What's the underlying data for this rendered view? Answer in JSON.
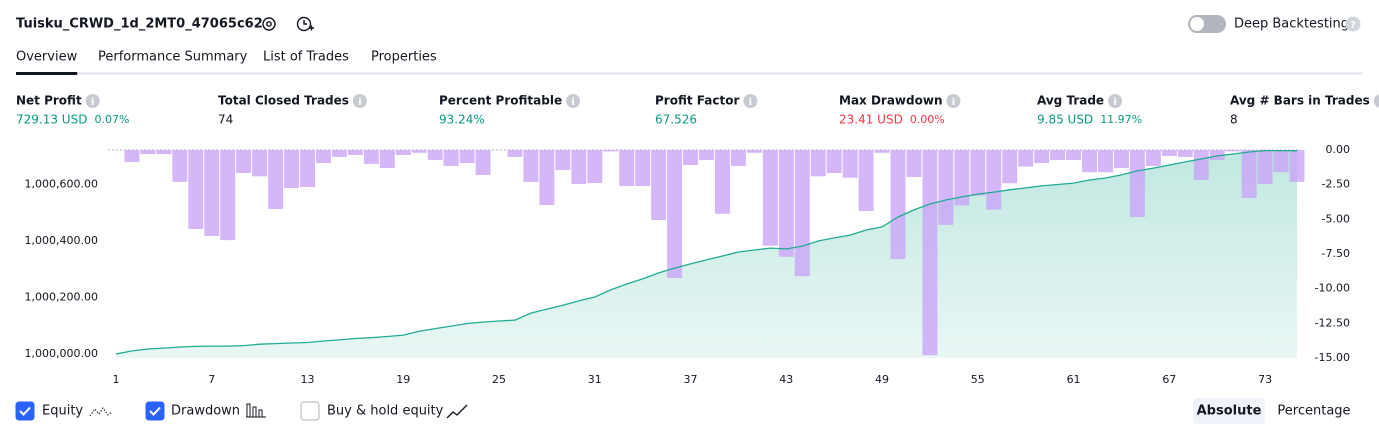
{
  "header": {
    "title": "Tuisku_CRWD_1d_2MT0_47065c62",
    "toggle_label": "Deep Backtesting"
  },
  "tabs": [
    "Overview",
    "Performance Summary",
    "List of Trades",
    "Properties"
  ],
  "metrics": [
    {
      "label": "Net Profit",
      "value": "729.13 USD",
      "change": "0.07%",
      "color": "#089981"
    },
    {
      "label": "Total Closed Trades",
      "value": "74",
      "color": "#131722"
    },
    {
      "label": "Percent Profitable",
      "value": "93.24%",
      "color": "#089981"
    },
    {
      "label": "Profit Factor",
      "value": "67.526",
      "color": "#089981"
    },
    {
      "label": "Max Drawdown",
      "value": "23.41 USD",
      "change": "0.00%",
      "color": "#f23645"
    },
    {
      "label": "Avg Trade",
      "value": "9.85 USD",
      "change": "11.97%",
      "color": "#089981"
    },
    {
      "label": "Avg # Bars in Trades",
      "value": "8",
      "color": "#131722"
    }
  ],
  "chart_data": {
    "type": "bar-line",
    "x": [
      1,
      2,
      3,
      4,
      5,
      6,
      7,
      8,
      9,
      10,
      11,
      12,
      13,
      14,
      15,
      16,
      17,
      18,
      19,
      20,
      21,
      22,
      23,
      24,
      25,
      26,
      27,
      28,
      29,
      30,
      31,
      32,
      33,
      34,
      35,
      36,
      37,
      38,
      39,
      40,
      41,
      42,
      43,
      44,
      45,
      46,
      47,
      48,
      49,
      50,
      51,
      52,
      53,
      54,
      55,
      56,
      57,
      58,
      59,
      60,
      61,
      62,
      63,
      64,
      65,
      66,
      67,
      68,
      69,
      70,
      71,
      72,
      73,
      74,
      75
    ],
    "xlim": [
      1,
      75
    ],
    "xticks": [
      1,
      7,
      13,
      19,
      25,
      31,
      37,
      43,
      49,
      55,
      61,
      67,
      73
    ],
    "ylim": [
      999986,
      1000722
    ],
    "yticks": [
      {
        "value": 1000000,
        "label": "1,000,000.00"
      },
      {
        "value": 1000200,
        "label": "1,000,200.00"
      },
      {
        "value": 1000400,
        "label": "1,000,400.00"
      },
      {
        "value": 1000600,
        "label": "1,000,600.00"
      }
    ],
    "y2lim": [
      -15,
      0
    ],
    "y2ticks": [
      {
        "value": 0,
        "label": "0.00"
      },
      {
        "value": -2.5,
        "label": "-2.50"
      },
      {
        "value": -5,
        "label": "-5.00"
      },
      {
        "value": -7.5,
        "label": "-7.50"
      },
      {
        "value": -10,
        "label": "-10.00"
      },
      {
        "value": -12.5,
        "label": "-12.50"
      },
      {
        "value": -15,
        "label": "-15.00"
      }
    ],
    "series": [
      {
        "name": "Equity",
        "color": "#22ab94",
        "values": [
          1000000,
          1000011,
          1000018,
          1000021,
          1000025,
          1000027,
          1000028,
          1000028,
          1000030,
          1000035,
          1000037,
          1000039,
          1000041,
          1000046,
          1000050,
          1000055,
          1000058,
          1000062,
          1000067,
          1000081,
          1000090,
          1000099,
          1000108,
          1000113,
          1000117,
          1000120,
          1000145,
          1000159,
          1000173,
          1000188,
          1000202,
          1000227,
          1000248,
          1000266,
          1000287,
          1000304,
          1000319,
          1000333,
          1000347,
          1000361,
          1000368,
          1000375,
          1000372,
          1000382,
          1000400,
          1000411,
          1000421,
          1000439,
          1000450,
          1000485,
          1000510,
          1000531,
          1000545,
          1000556,
          1000566,
          1000573,
          1000581,
          1000588,
          1000595,
          1000600,
          1000605,
          1000616,
          1000623,
          1000634,
          1000648,
          1000658,
          1000669,
          1000680,
          1000690,
          1000701,
          1000708,
          1000715,
          1000720,
          1000720,
          1000719
        ]
      },
      {
        "name": "Drawdown",
        "color": "#c9a3f7",
        "axis": "y2",
        "values": [
          null,
          -0.87,
          -0.3,
          -0.3,
          -2.3,
          -5.7,
          -6.2,
          -6.5,
          -1.66,
          -1.9,
          -4.25,
          -2.74,
          -2.67,
          -0.94,
          -0.5,
          -0.36,
          -1.0,
          -1.3,
          -0.36,
          -0.2,
          -0.72,
          -1.15,
          -0.94,
          -1.8,
          0,
          -0.5,
          -2.3,
          -3.97,
          -1.44,
          -2.45,
          -2.38,
          -0.1,
          -2.6,
          -2.6,
          -5.05,
          -9.23,
          -1.08,
          -0.72,
          -4.6,
          -1.15,
          -0.2,
          -6.9,
          -7.7,
          -9.1,
          -1.9,
          -1.66,
          -2.0,
          -4.4,
          -0.2,
          -7.86,
          -1.95,
          -14.8,
          -5.4,
          -4.0,
          -3.3,
          -4.3,
          -2.4,
          -1.2,
          -0.94,
          -0.72,
          -0.72,
          -1.6,
          -1.6,
          -1.3,
          -4.83,
          -1.15,
          -0.43,
          -0.5,
          -2.16,
          -0.72,
          -0.1,
          -3.46,
          -2.45,
          -1.6,
          -2.3
        ]
      }
    ]
  },
  "controls": {
    "other_checkbox": "Buy & hold equity",
    "buttons": [
      "Absolute",
      "Percentage"
    ]
  }
}
